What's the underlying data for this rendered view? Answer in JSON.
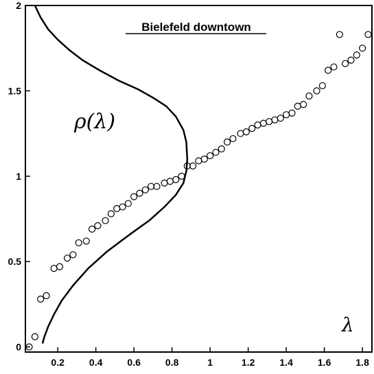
{
  "chart_data": {
    "type": "scatter",
    "title": "Bielefeld downtown",
    "xlabel": "",
    "ylabel": "",
    "xlim": [
      0.03,
      1.85
    ],
    "ylim": [
      -0.03,
      2.0
    ],
    "x_ticks": [
      0.2,
      0.4,
      0.6,
      0.8,
      1,
      1.2,
      1.4,
      1.6,
      1.8
    ],
    "x_tick_labels": [
      "0.2",
      "0.4",
      "0.6",
      "0.8",
      "1",
      "1.2",
      "1.4",
      "1.6",
      "1.8"
    ],
    "y_ticks": [
      0,
      0.5,
      1,
      1.5,
      2
    ],
    "y_tick_labels": [
      "0",
      "0.5",
      "1",
      "1.5",
      "2"
    ],
    "grid": false,
    "annotations": [
      {
        "text": "ρ(λ)",
        "x": 0.28,
        "y": 1.35
      },
      {
        "text": "λ",
        "x": 1.76,
        "y": 0.08
      }
    ],
    "series": [
      {
        "kind": "line",
        "color": "#000000",
        "points": [
          [
            0.08,
            2.0
          ],
          [
            0.11,
            1.93
          ],
          [
            0.15,
            1.86
          ],
          [
            0.2,
            1.8
          ],
          [
            0.26,
            1.74
          ],
          [
            0.33,
            1.68
          ],
          [
            0.42,
            1.62
          ],
          [
            0.52,
            1.56
          ],
          [
            0.62,
            1.51
          ],
          [
            0.7,
            1.46
          ],
          [
            0.77,
            1.41
          ],
          [
            0.82,
            1.35
          ],
          [
            0.86,
            1.27
          ],
          [
            0.875,
            1.2
          ],
          [
            0.88,
            1.1
          ],
          [
            0.875,
            1.03
          ],
          [
            0.86,
            0.96
          ],
          [
            0.82,
            0.89
          ],
          [
            0.76,
            0.82
          ],
          [
            0.68,
            0.74
          ],
          [
            0.58,
            0.66
          ],
          [
            0.46,
            0.56
          ],
          [
            0.36,
            0.46
          ],
          [
            0.28,
            0.36
          ],
          [
            0.22,
            0.27
          ],
          [
            0.18,
            0.19
          ],
          [
            0.15,
            0.12
          ],
          [
            0.13,
            0.06
          ],
          [
            0.12,
            0.02
          ]
        ]
      },
      {
        "kind": "scatter",
        "color": "#000000",
        "x": [
          0.05,
          0.08,
          0.11,
          0.14,
          0.18,
          0.21,
          0.25,
          0.28,
          0.31,
          0.35,
          0.38,
          0.41,
          0.45,
          0.48,
          0.51,
          0.54,
          0.57,
          0.6,
          0.63,
          0.66,
          0.69,
          0.72,
          0.76,
          0.79,
          0.82,
          0.85,
          0.88,
          0.91,
          0.94,
          0.97,
          1.0,
          1.03,
          1.06,
          1.09,
          1.12,
          1.16,
          1.19,
          1.22,
          1.25,
          1.28,
          1.31,
          1.34,
          1.37,
          1.4,
          1.43,
          1.46,
          1.49,
          1.52,
          1.56,
          1.59,
          1.62,
          1.65,
          1.68,
          1.71,
          1.74,
          1.77,
          1.8,
          1.83
        ],
        "y": [
          0.0,
          0.06,
          0.28,
          0.3,
          0.46,
          0.47,
          0.52,
          0.54,
          0.61,
          0.62,
          0.69,
          0.71,
          0.74,
          0.78,
          0.81,
          0.82,
          0.84,
          0.88,
          0.9,
          0.92,
          0.94,
          0.94,
          0.96,
          0.97,
          0.98,
          1.0,
          1.06,
          1.06,
          1.09,
          1.1,
          1.12,
          1.14,
          1.16,
          1.2,
          1.22,
          1.25,
          1.26,
          1.28,
          1.3,
          1.31,
          1.32,
          1.33,
          1.34,
          1.36,
          1.37,
          1.41,
          1.42,
          1.47,
          1.5,
          1.53,
          1.62,
          1.64,
          1.83,
          1.66,
          1.68,
          1.71,
          1.75,
          1.83
        ]
      }
    ]
  }
}
